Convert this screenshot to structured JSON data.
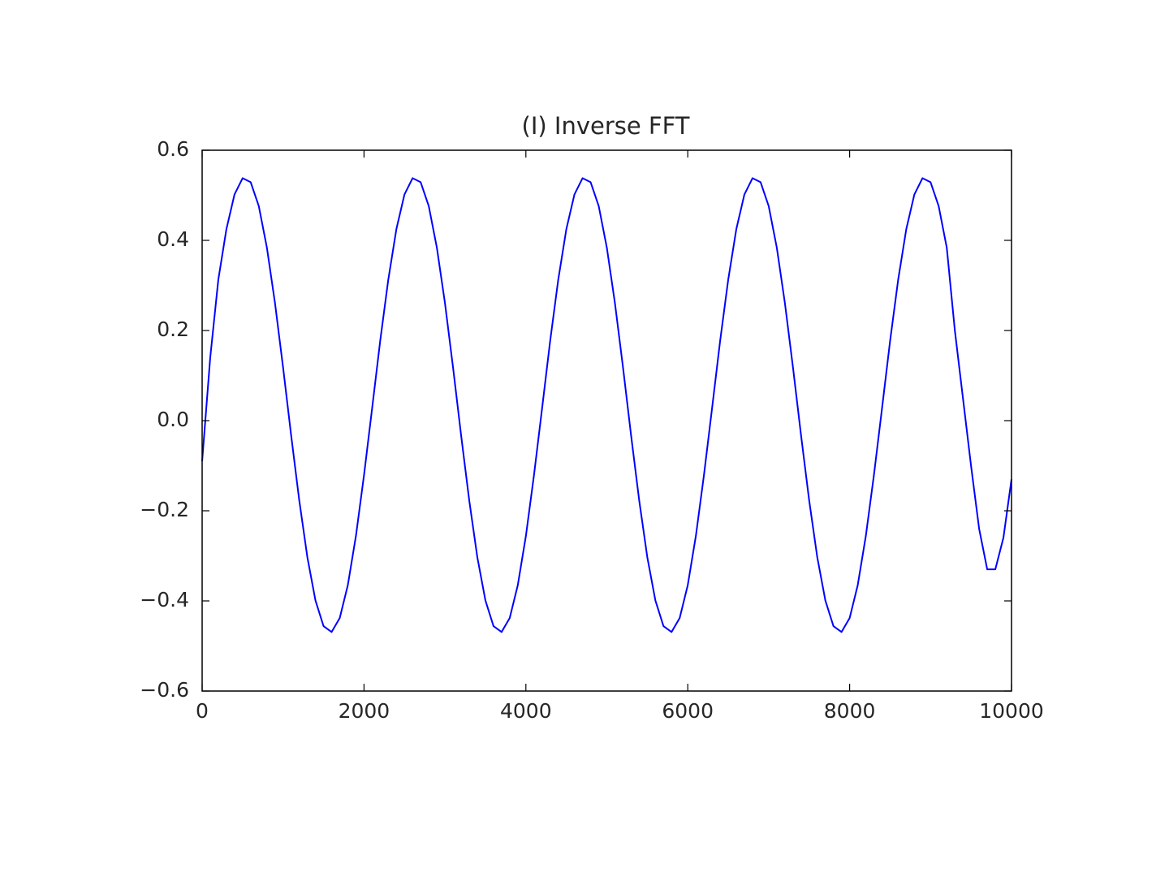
{
  "chart_data": {
    "type": "line",
    "title": "(I) Inverse FFT",
    "x": [
      0,
      100,
      200,
      300,
      400,
      500,
      600,
      700,
      800,
      900,
      1000,
      1100,
      1200,
      1300,
      1400,
      1500,
      1600,
      1700,
      1800,
      1900,
      2000,
      2100,
      2200,
      2300,
      2400,
      2500,
      2600,
      2700,
      2800,
      2900,
      3000,
      3100,
      3200,
      3300,
      3400,
      3500,
      3600,
      3700,
      3800,
      3900,
      4000,
      4100,
      4200,
      4300,
      4400,
      4500,
      4600,
      4700,
      4800,
      4900,
      5000,
      5100,
      5200,
      5300,
      5400,
      5500,
      5600,
      5700,
      5800,
      5900,
      6000,
      6100,
      6200,
      6300,
      6400,
      6500,
      6600,
      6700,
      6800,
      6900,
      7000,
      7100,
      7200,
      7300,
      7400,
      7500,
      7600,
      7700,
      7800,
      7900,
      8000,
      8100,
      8200,
      8300,
      8400,
      8500,
      8600,
      8700,
      8800,
      8900,
      9000,
      9100,
      9200,
      9300,
      9400,
      9500,
      9600,
      9700,
      9800,
      9900,
      10000
    ],
    "series": [
      {
        "color": "#0000ff",
        "values": [
          -0.09,
          0.14,
          0.313,
          0.425,
          0.502,
          0.538,
          0.529,
          0.476,
          0.384,
          0.261,
          0.118,
          -0.033,
          -0.177,
          -0.303,
          -0.399,
          -0.456,
          -0.469,
          -0.438,
          -0.365,
          -0.256,
          -0.121,
          0.027,
          0.177,
          0.313,
          0.425,
          0.502,
          0.538,
          0.529,
          0.476,
          0.384,
          0.261,
          0.118,
          -0.033,
          -0.177,
          -0.303,
          -0.399,
          -0.456,
          -0.469,
          -0.438,
          -0.365,
          -0.256,
          -0.121,
          0.027,
          0.177,
          0.313,
          0.425,
          0.502,
          0.538,
          0.529,
          0.476,
          0.384,
          0.261,
          0.118,
          -0.033,
          -0.177,
          -0.303,
          -0.399,
          -0.456,
          -0.469,
          -0.438,
          -0.365,
          -0.256,
          -0.121,
          0.027,
          0.177,
          0.313,
          0.425,
          0.502,
          0.538,
          0.529,
          0.476,
          0.384,
          0.261,
          0.118,
          -0.033,
          -0.177,
          -0.303,
          -0.399,
          -0.456,
          -0.469,
          -0.438,
          -0.365,
          -0.256,
          -0.121,
          0.027,
          0.177,
          0.313,
          0.425,
          0.502,
          0.538,
          0.529,
          0.476,
          0.384,
          0.2,
          0.05,
          -0.1,
          -0.24,
          -0.33,
          -0.33,
          -0.26,
          -0.13
        ]
      }
    ],
    "xlim": [
      0,
      10000
    ],
    "xticks": [
      0,
      2000,
      4000,
      6000,
      8000,
      10000
    ],
    "ylim": [
      -0.6,
      0.6
    ],
    "yticks": [
      {
        "value": -0.6,
        "label": "−0.6"
      },
      {
        "value": -0.4,
        "label": "−0.4"
      },
      {
        "value": -0.2,
        "label": "−0.2"
      },
      {
        "value": 0,
        "label": "0.0"
      },
      0.2,
      0.4,
      0.6
    ],
    "grid": false
  }
}
